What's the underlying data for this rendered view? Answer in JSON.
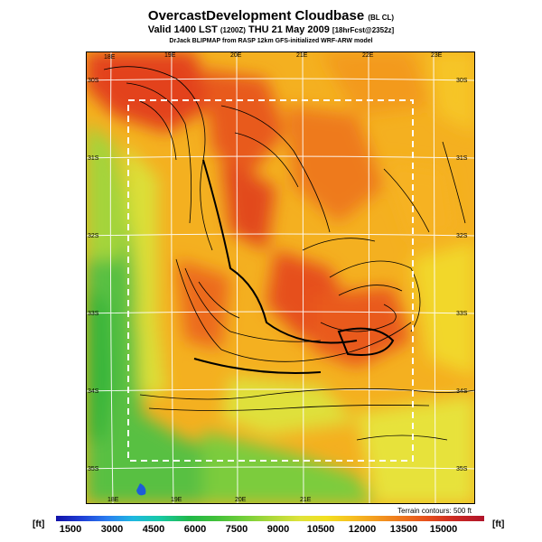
{
  "header": {
    "title": "OvercastDevelopment Cloudbase",
    "title_suffix": "(BL CL)",
    "valid_line": "Valid 1400 LST",
    "valid_code": "(1200Z)",
    "valid_date": "THU 21 May 2009",
    "forecast_id": "[18hrFcst@2352z]",
    "credit": "DrJack BLIPMAP from RASP 12km GFS-initialized WRF-ARW model"
  },
  "map": {
    "longitude_labels_top": [
      "18E",
      "19E",
      "20E",
      "21E",
      "22E",
      "23E"
    ],
    "longitude_labels_bottom": [
      "18E",
      "19E",
      "20E",
      "21E"
    ],
    "latitude_labels_left": [
      "30S",
      "31S",
      "32S",
      "33S",
      "34S",
      "35S"
    ],
    "latitude_labels_right": [
      "30S",
      "31S",
      "32S",
      "33S",
      "34S",
      "35S"
    ],
    "terrain_contours": "Terrain contours: 500 ft"
  },
  "legend": {
    "unit_left": "[ft]",
    "unit_right": "[ft]",
    "labels": [
      "1500",
      "3000",
      "4500",
      "6000",
      "7500",
      "9000",
      "10500",
      "12000",
      "13500",
      "15000"
    ]
  },
  "colors": {
    "high": "#e0401c",
    "mid": "#f5a51f",
    "low": "#3fb845",
    "coast_green": "#60c24a"
  }
}
